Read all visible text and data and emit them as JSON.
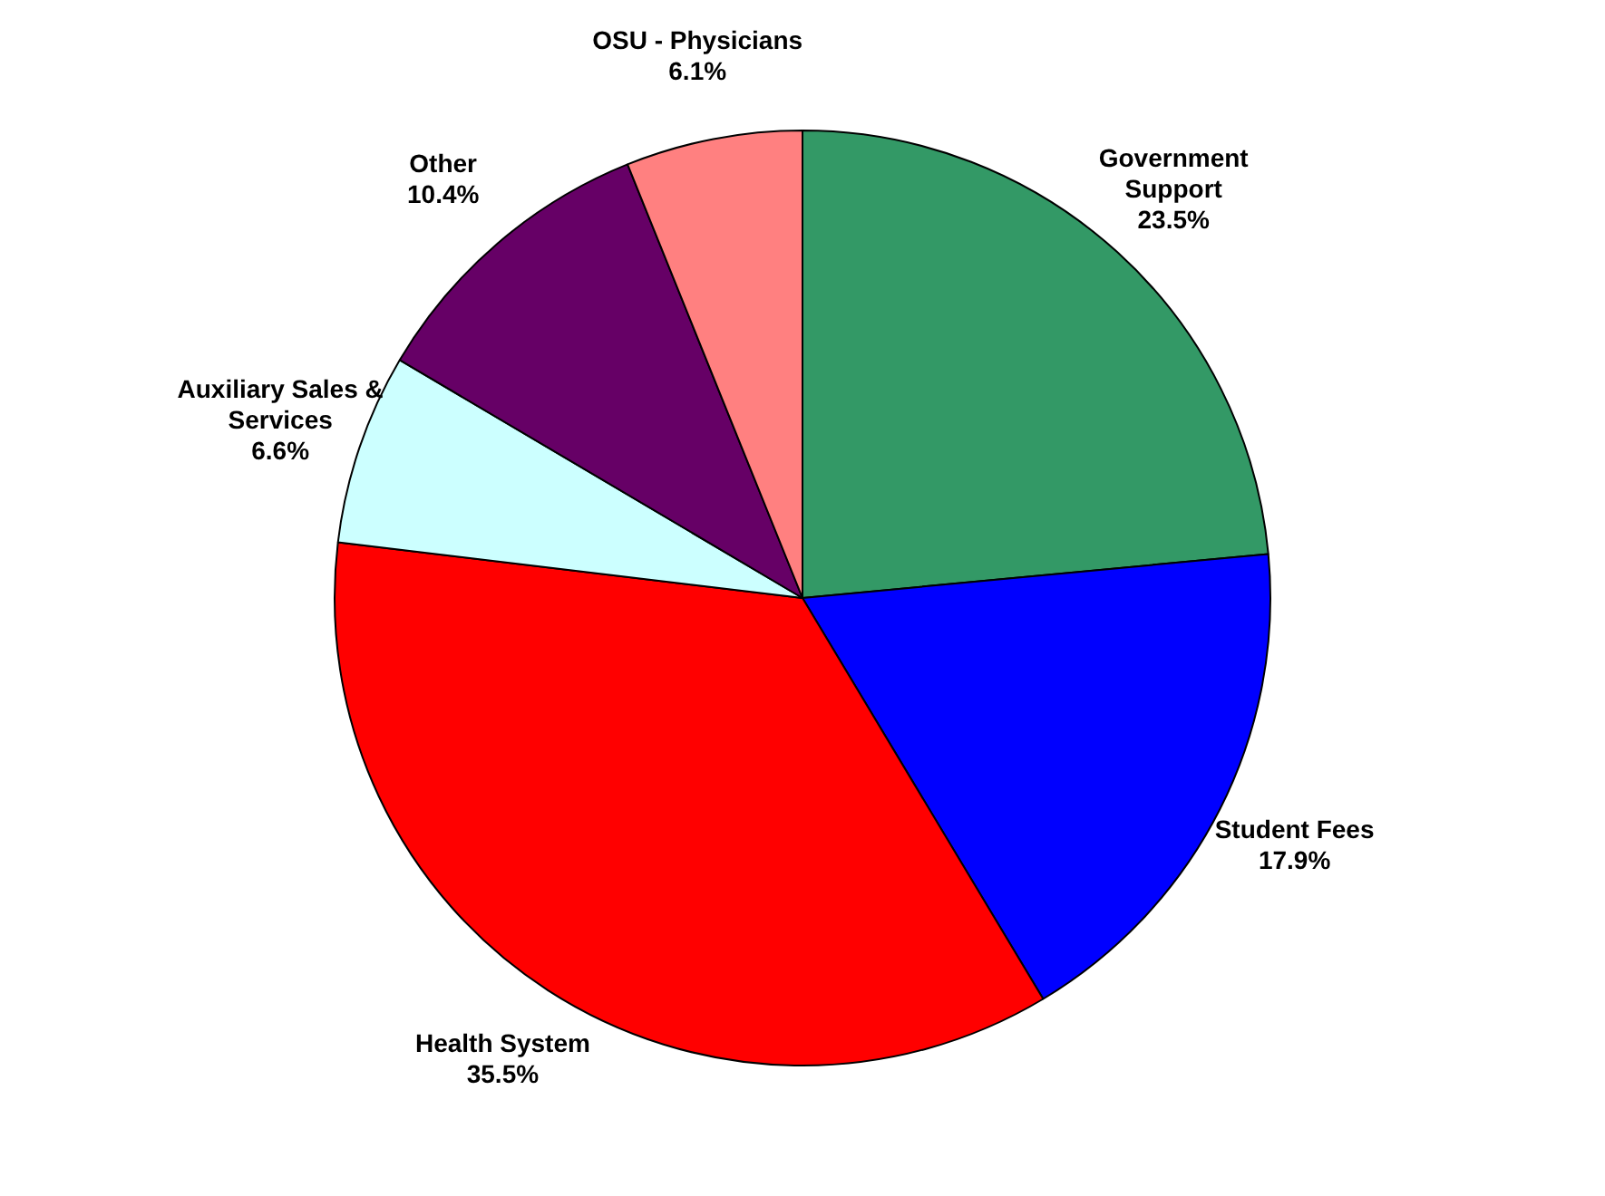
{
  "chart_data": {
    "type": "pie",
    "categories": [
      "Government Support",
      "Student Fees",
      "Health System",
      "Auxiliary Sales & Services",
      "Other",
      "OSU - Physicians"
    ],
    "values": [
      23.5,
      17.9,
      35.5,
      6.6,
      10.4,
      6.1
    ],
    "colors": [
      "#339966",
      "#0000ff",
      "#ff0000",
      "#ccffff",
      "#660066",
      "#ff8080"
    ],
    "value_labels": [
      "23.5%",
      "17.9%",
      "35.5%",
      "6.6%",
      "10.4%",
      "6.1%"
    ],
    "legend": false
  }
}
